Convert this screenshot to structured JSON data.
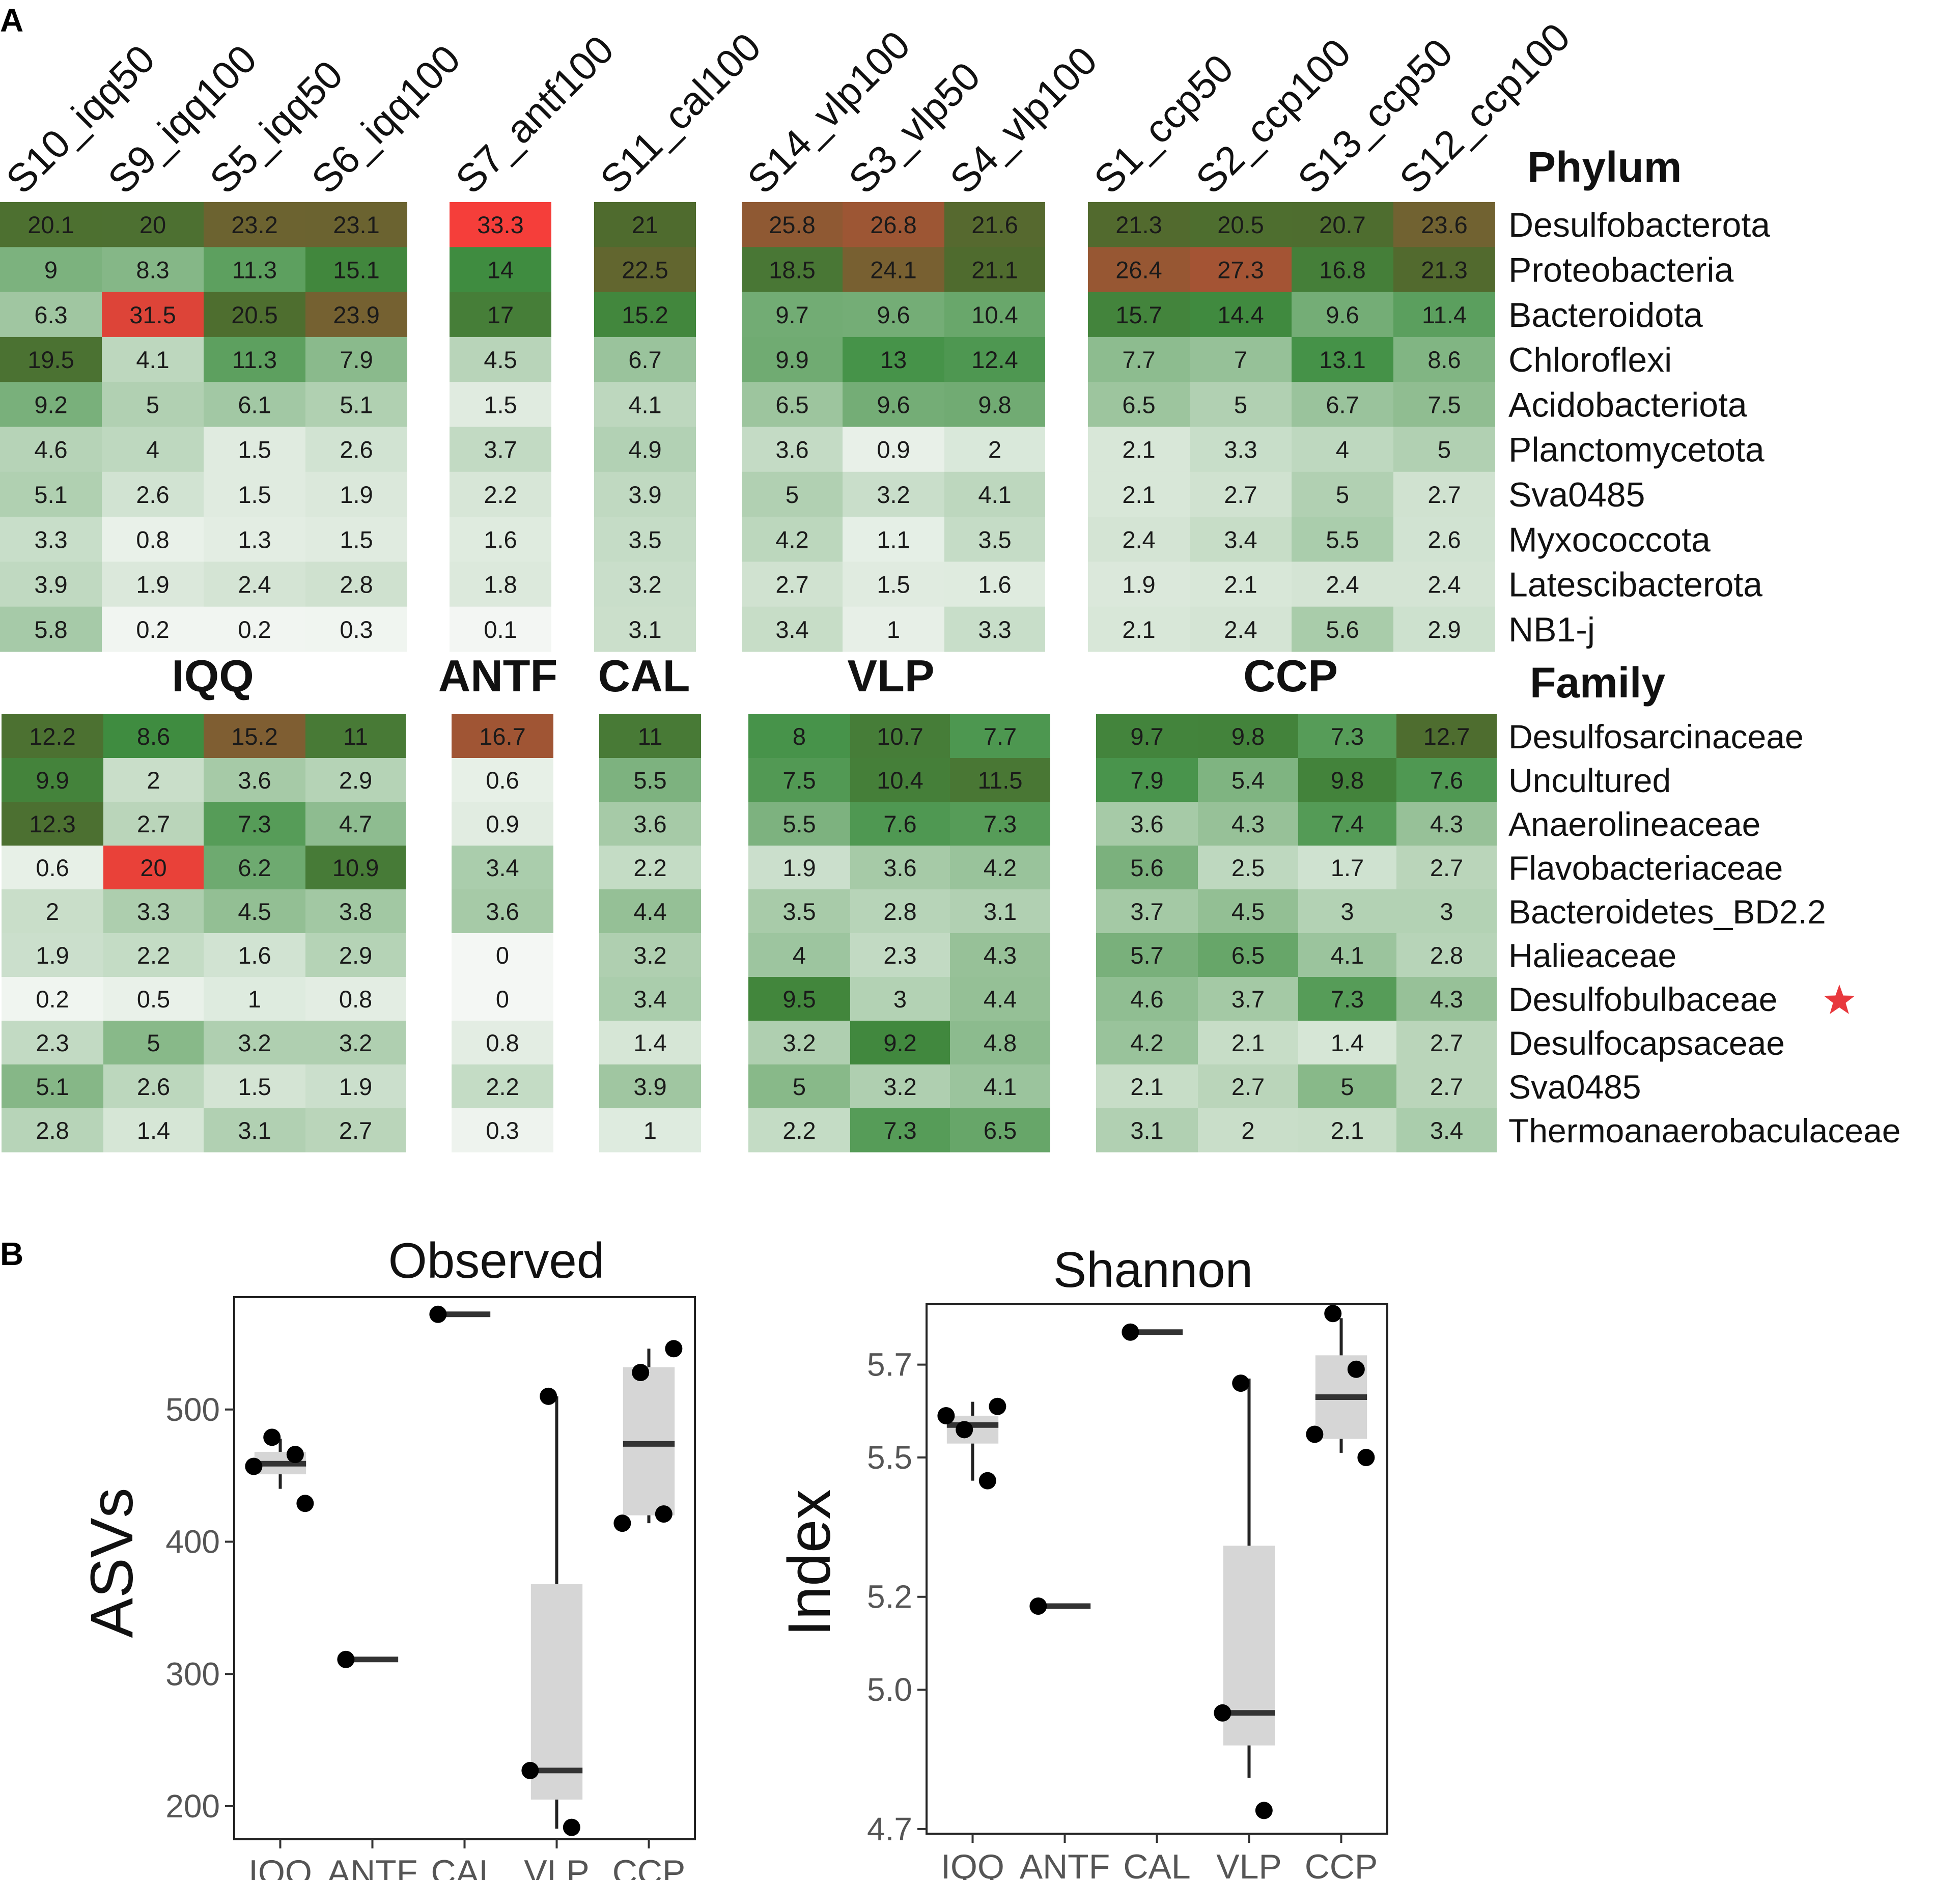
{
  "panel_labels": {
    "a": "A",
    "b": "B"
  },
  "colors": {
    "low": "#f4f7f4",
    "mid": "#3e8e41",
    "dark": "#4f6b2e",
    "high": "#ff3b3b",
    "star": "#e8383d",
    "box_fill": "#d6d6d6"
  },
  "chart_data": [
    {
      "type": "heatmap",
      "title": "Phylum",
      "samples": [
        "S10_iqq50",
        "S9_iqq100",
        "S5_iqq50",
        "S6_iqq100",
        "S7_antf100",
        "S11_cal100",
        "S14_vlp100",
        "S3_vlp50",
        "S4_vlp100",
        "S1_ccp50",
        "S2_ccp100",
        "S13_ccp50",
        "S12_ccp100"
      ],
      "groups": [
        {
          "name": "IQQ",
          "size": 4
        },
        {
          "name": "ANTF",
          "size": 1
        },
        {
          "name": "CAL",
          "size": 1
        },
        {
          "name": "VLP",
          "size": 3
        },
        {
          "name": "CCP",
          "size": 4
        }
      ],
      "rows": [
        {
          "label": "Desulfobacterota",
          "values": [
            "20.1",
            "20",
            "23.2",
            "23.1",
            "33.3",
            "21",
            "25.8",
            "26.8",
            "21.6",
            "21.3",
            "20.5",
            "20.7",
            "23.6"
          ]
        },
        {
          "label": "Proteobacteria",
          "values": [
            "9",
            "8.3",
            "11.3",
            "15.1",
            "14",
            "22.5",
            "18.5",
            "24.1",
            "21.1",
            "26.4",
            "27.3",
            "16.8",
            "21.3"
          ]
        },
        {
          "label": "Bacteroidota",
          "values": [
            "6.3",
            "31.5",
            "20.5",
            "23.9",
            "17",
            "15.2",
            "9.7",
            "9.6",
            "10.4",
            "15.7",
            "14.4",
            "9.6",
            "11.4"
          ]
        },
        {
          "label": "Chloroflexi",
          "values": [
            "19.5",
            "4.1",
            "11.3",
            "7.9",
            "4.5",
            "6.7",
            "9.9",
            "13",
            "12.4",
            "7.7",
            "7",
            "13.1",
            "8.6"
          ]
        },
        {
          "label": "Acidobacteriota",
          "values": [
            "9.2",
            "5",
            "6.1",
            "5.1",
            "1.5",
            "4.1",
            "6.5",
            "9.6",
            "9.8",
            "6.5",
            "5",
            "6.7",
            "7.5"
          ]
        },
        {
          "label": "Planctomycetota",
          "values": [
            "4.6",
            "4",
            "1.5",
            "2.6",
            "3.7",
            "4.9",
            "3.6",
            "0.9",
            "2",
            "2.1",
            "3.3",
            "4",
            "5"
          ]
        },
        {
          "label": "Sva0485",
          "values": [
            "5.1",
            "2.6",
            "1.5",
            "1.9",
            "2.2",
            "3.9",
            "5",
            "3.2",
            "4.1",
            "2.1",
            "2.7",
            "5",
            "2.7"
          ]
        },
        {
          "label": "Myxococcota",
          "values": [
            "3.3",
            "0.8",
            "1.3",
            "1.5",
            "1.6",
            "3.5",
            "4.2",
            "1.1",
            "3.5",
            "2.4",
            "3.4",
            "5.5",
            "2.6"
          ]
        },
        {
          "label": "Latescibacterota",
          "values": [
            "3.9",
            "1.9",
            "2.4",
            "2.8",
            "1.8",
            "3.2",
            "2.7",
            "1.5",
            "1.6",
            "1.9",
            "2.1",
            "2.4",
            "2.4"
          ]
        },
        {
          "label": "NB1-j",
          "values": [
            "5.8",
            "0.2",
            "0.2",
            "0.3",
            "0.1",
            "3.1",
            "3.4",
            "1",
            "3.3",
            "2.1",
            "2.4",
            "5.6",
            "2.9"
          ]
        }
      ]
    },
    {
      "type": "heatmap",
      "title": "Family",
      "rows": [
        {
          "label": "Desulfosarcinaceae",
          "values": [
            "12.2",
            "8.6",
            "15.2",
            "11",
            "16.7",
            "11",
            "8",
            "10.7",
            "7.7",
            "9.7",
            "9.8",
            "7.3",
            "12.7"
          ]
        },
        {
          "label": "Uncultured",
          "values": [
            "9.9",
            "2",
            "3.6",
            "2.9",
            "0.6",
            "5.5",
            "7.5",
            "10.4",
            "11.5",
            "7.9",
            "5.4",
            "9.8",
            "7.6"
          ]
        },
        {
          "label": "Anaerolineaceae",
          "values": [
            "12.3",
            "2.7",
            "7.3",
            "4.7",
            "0.9",
            "3.6",
            "5.5",
            "7.6",
            "7.3",
            "3.6",
            "4.3",
            "7.4",
            "4.3"
          ]
        },
        {
          "label": "Flavobacteriaceae",
          "values": [
            "0.6",
            "20",
            "6.2",
            "10.9",
            "3.4",
            "2.2",
            "1.9",
            "3.6",
            "4.2",
            "5.6",
            "2.5",
            "1.7",
            "2.7"
          ]
        },
        {
          "label": "Bacteroidetes_BD2.2",
          "values": [
            "2",
            "3.3",
            "4.5",
            "3.8",
            "3.6",
            "4.4",
            "3.5",
            "2.8",
            "3.1",
            "3.7",
            "4.5",
            "3",
            "3"
          ]
        },
        {
          "label": "Halieaceae",
          "values": [
            "1.9",
            "2.2",
            "1.6",
            "2.9",
            "0",
            "3.2",
            "4",
            "2.3",
            "4.3",
            "5.7",
            "6.5",
            "4.1",
            "2.8"
          ]
        },
        {
          "label": "Desulfobulbaceae",
          "star": true,
          "values": [
            "0.2",
            "0.5",
            "1",
            "0.8",
            "0",
            "3.4",
            "9.5",
            "3",
            "4.4",
            "4.6",
            "3.7",
            "7.3",
            "4.3"
          ]
        },
        {
          "label": "Desulfocapsaceae",
          "values": [
            "2.3",
            "5",
            "3.2",
            "3.2",
            "0.8",
            "1.4",
            "3.2",
            "9.2",
            "4.8",
            "4.2",
            "2.1",
            "1.4",
            "2.7"
          ]
        },
        {
          "label": "Sva0485",
          "values": [
            "5.1",
            "2.6",
            "1.5",
            "1.9",
            "2.2",
            "3.9",
            "5",
            "3.2",
            "4.1",
            "2.1",
            "2.7",
            "5",
            "2.7"
          ]
        },
        {
          "label": "Thermoanaerobaculaceae",
          "values": [
            "2.8",
            "1.4",
            "3.1",
            "2.7",
            "0.3",
            "1",
            "2.2",
            "7.3",
            "6.5",
            "3.1",
            "2",
            "2.1",
            "3.4"
          ]
        }
      ]
    },
    {
      "type": "box",
      "title": "Observed",
      "ylabel": "ASVs",
      "categories": [
        "IQQ",
        "ANTF",
        "CAL",
        "VLP",
        "CCP"
      ],
      "ylim": [
        175,
        585
      ],
      "yticks": [
        "200",
        "300",
        "400",
        "500"
      ],
      "boxes": [
        {
          "q1": 451,
          "median": 459,
          "q3": 468,
          "whisker_low": 440,
          "whisker_high": 478,
          "points": [
            457,
            466,
            479,
            429
          ]
        },
        {
          "q1": 311,
          "median": 311,
          "q3": 311,
          "whisker_low": 311,
          "whisker_high": 311,
          "points": [
            311
          ]
        },
        {
          "q1": 572,
          "median": 572,
          "q3": 572,
          "whisker_low": 572,
          "whisker_high": 572,
          "points": [
            572
          ]
        },
        {
          "q1": 205,
          "median": 227,
          "q3": 368,
          "whisker_low": 183,
          "whisker_high": 510,
          "points": [
            227,
            184,
            510
          ]
        },
        {
          "q1": 420,
          "median": 474,
          "q3": 532,
          "whisker_low": 414,
          "whisker_high": 546,
          "points": [
            414,
            421,
            528,
            546
          ]
        }
      ]
    },
    {
      "type": "box",
      "title": "Shannon",
      "ylabel": "Index",
      "categories": [
        "IQQ",
        "ANTF",
        "CAL",
        "VLP",
        "CCP"
      ],
      "ylim": [
        4.69,
        5.83
      ],
      "yticks": [
        "4.7",
        "5.0",
        "5.2",
        "5.5",
        "5.7"
      ],
      "boxes": [
        {
          "q1": 5.53,
          "median": 5.57,
          "q3": 5.59,
          "whisker_low": 5.45,
          "whisker_high": 5.62,
          "points": [
            5.59,
            5.45,
            5.56,
            5.61
          ]
        },
        {
          "q1": 5.18,
          "median": 5.18,
          "q3": 5.18,
          "whisker_low": 5.18,
          "whisker_high": 5.18,
          "points": [
            5.18
          ]
        },
        {
          "q1": 5.77,
          "median": 5.77,
          "q3": 5.77,
          "whisker_low": 5.77,
          "whisker_high": 5.77,
          "points": [
            5.77
          ]
        },
        {
          "q1": 4.88,
          "median": 4.95,
          "q3": 5.31,
          "whisker_low": 4.81,
          "whisker_high": 5.67,
          "points": [
            4.95,
            4.74,
            5.66
          ]
        },
        {
          "q1": 5.54,
          "median": 5.63,
          "q3": 5.72,
          "whisker_low": 5.51,
          "whisker_high": 5.8,
          "points": [
            5.55,
            5.69,
            5.81,
            5.5
          ]
        }
      ]
    }
  ]
}
